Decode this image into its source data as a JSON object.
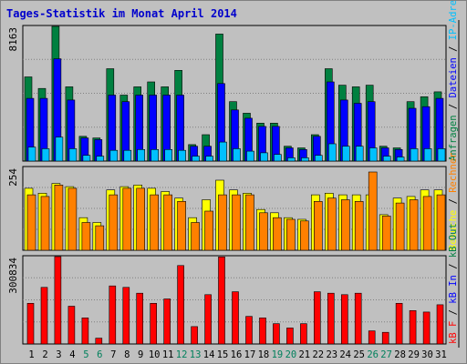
{
  "colors": {
    "background": "#c0c0c0",
    "frame": "#000000",
    "title": "#0000cc",
    "hits": "#008040",
    "files": "#0000ff",
    "pages": "#00c0ff",
    "visits": "#ffff00",
    "sites": "#ff8000",
    "kbytes": "#ff0000",
    "weekend_label": "#00805c",
    "weekday_label": "#000000"
  },
  "chart_data": {
    "type": "bar",
    "title": "Tages-Statistik im Monat April 2014",
    "categories": [
      "1",
      "2",
      "3",
      "4",
      "5",
      "6",
      "7",
      "8",
      "9",
      "10",
      "11",
      "12",
      "13",
      "14",
      "15",
      "16",
      "17",
      "18",
      "19",
      "20",
      "21",
      "22",
      "23",
      "24",
      "25",
      "26",
      "27",
      "28",
      "29",
      "30",
      "31"
    ],
    "weekend_days": [
      "5",
      "6",
      "12",
      "13",
      "19",
      "20",
      "26",
      "27"
    ],
    "right_axis_labels": [
      {
        "text": "Anfragen",
        "color": "#008040"
      },
      {
        "text": " / ",
        "color": "#000000"
      },
      {
        "text": "Dateien",
        "color": "#0000ff"
      },
      {
        "text": " / ",
        "color": "#000000"
      },
      {
        "text": "IP-Adressen",
        "color": "#00c0ff"
      }
    ],
    "mid_axis_labels": [
      {
        "text": "Besuche",
        "color": "#ffff00"
      },
      {
        "text": " / ",
        "color": "#000000"
      },
      {
        "text": "Rechner",
        "color": "#ff8000"
      }
    ],
    "bot_axis_labels": [
      {
        "text": "kB F",
        "color": "#ff0000"
      },
      {
        "text": " / ",
        "color": "#000000"
      },
      {
        "text": "kB In",
        "color": "#0000ff"
      },
      {
        "text": " / ",
        "color": "#000000"
      },
      {
        "text": "kB Out",
        "color": "#008040"
      }
    ],
    "panels": [
      {
        "name": "top",
        "max_label": "8163",
        "ylim": [
          0,
          8163
        ],
        "series": [
          {
            "values": [
              5100,
              4400,
              8163,
              4500,
              1500,
              1400,
              5600,
              4000,
              4500,
              4800,
              4500,
              5500,
              1000,
              1600,
              7700,
              3600,
              2900,
              2300,
              2300,
              900,
              800,
              1600,
              5600,
              4600,
              4500,
              4600,
              900,
              800,
              3600,
              3900,
              4200
            ]
          },
          {
            "values": [
              3800,
              3800,
              6200,
              3700,
              1400,
              1300,
              4000,
              3600,
              4000,
              4000,
              4000,
              4000,
              900,
              900,
              4700,
              3100,
              2600,
              2100,
              2100,
              800,
              700,
              1500,
              4800,
              3700,
              3500,
              3600,
              800,
              700,
              3200,
              3300,
              3800
            ]
          },
          {
            "values": [
              850,
              750,
              1450,
              750,
              350,
              300,
              650,
              650,
              700,
              700,
              700,
              650,
              300,
              300,
              1150,
              750,
              600,
              500,
              400,
              200,
              200,
              350,
              1050,
              900,
              900,
              800,
              300,
              250,
              750,
              750,
              750
            ]
          }
        ]
      },
      {
        "name": "mid",
        "max_label": "254",
        "ylim": [
          0,
          254
        ],
        "series": [
          {
            "values": [
              190,
              175,
              205,
              195,
              100,
              85,
              185,
              195,
              200,
              190,
              180,
              160,
              100,
              155,
              215,
              185,
              175,
              125,
              115,
              100,
              95,
              170,
              175,
              170,
              170,
              170,
              109,
              160,
              165,
              185,
              185
            ]
          },
          {
            "values": [
              170,
              165,
              200,
              190,
              85,
              75,
              170,
              190,
              190,
              170,
              170,
              150,
              85,
              120,
              170,
              170,
              170,
              115,
              100,
              95,
              90,
              150,
              160,
              155,
              150,
              240,
              105,
              145,
              155,
              165,
              170
            ]
          }
        ]
      },
      {
        "name": "bot",
        "max_label": "300834",
        "ylim": [
          0,
          300834
        ],
        "series": [
          {
            "values": [
              140000,
              195000,
              300834,
              130000,
              90000,
              20000,
              200000,
              195000,
              175000,
              140000,
              155000,
              270000,
              60000,
              170000,
              300000,
              180000,
              95000,
              90000,
              70000,
              55000,
              70000,
              180000,
              175000,
              170000,
              175000,
              45000,
              40000,
              140000,
              115000,
              110000,
              135000
            ]
          }
        ]
      }
    ]
  }
}
